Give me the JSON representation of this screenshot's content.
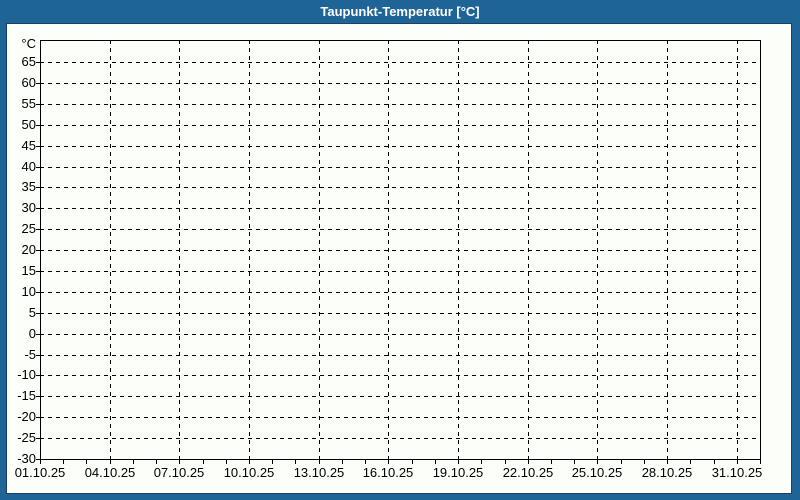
{
  "window": {
    "title": "Taupunkt-Temperatur [°C]"
  },
  "colors": {
    "background": "#1f6497",
    "panel": "#fcfef9",
    "panel_border": "#1c3f63",
    "grid": "#000000",
    "axis": "#000000",
    "label_text": "#000000",
    "title_text": "#ffffff"
  },
  "chart_data": {
    "type": "line",
    "title": "Taupunkt-Temperatur [°C]",
    "series": [],
    "y_unit": "°C",
    "y_ticks": [
      65,
      60,
      55,
      50,
      45,
      40,
      35,
      30,
      25,
      20,
      15,
      10,
      5,
      0,
      -5,
      -10,
      -15,
      -20,
      -25,
      -30
    ],
    "ylim": [
      -30,
      70.3
    ],
    "x_tick_labels": [
      "01.10.25",
      "04.10.25",
      "07.10.25",
      "10.10.25",
      "13.10.25",
      "16.10.25",
      "19.10.25",
      "22.10.25",
      "25.10.25",
      "28.10.25",
      "31.10.25"
    ],
    "x_tick_days": [
      0,
      3,
      6,
      9,
      12,
      15,
      18,
      21,
      24,
      27,
      30
    ],
    "xlim_days": [
      0,
      31
    ],
    "x_minor_step_days": 1,
    "grid_style": "dashed",
    "legend": null
  }
}
